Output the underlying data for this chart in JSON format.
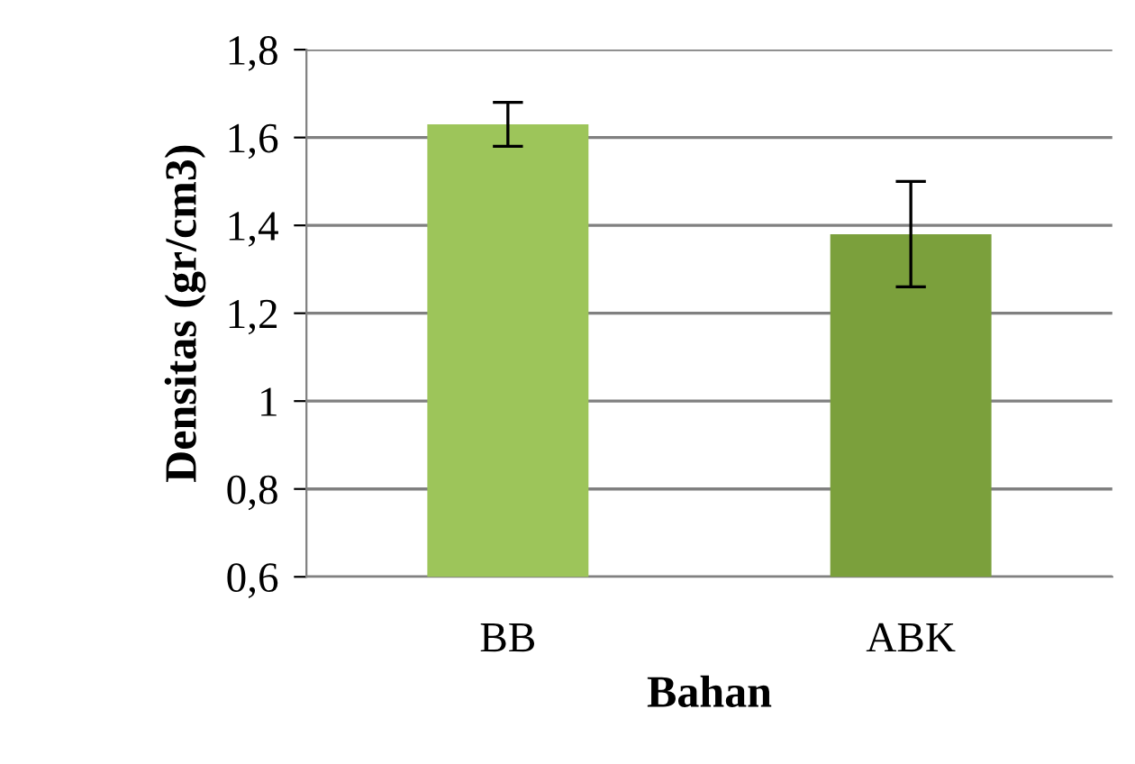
{
  "chart_data": {
    "type": "bar",
    "xlabel": "Bahan",
    "ylabel": "Densitas (gr/cm3)",
    "categories": [
      "BB",
      "ABK"
    ],
    "values": [
      1.63,
      1.38
    ],
    "colors": [
      "#9dc55a",
      "#7ba03c"
    ],
    "errors": [
      [
        1.58,
        1.68
      ],
      [
        1.26,
        1.5
      ]
    ],
    "ylim": [
      0.6,
      1.8
    ],
    "yticks": [
      {
        "value": 0.6,
        "label": "0,6"
      },
      {
        "value": 0.8,
        "label": "0,8"
      },
      1,
      {
        "value": 1.2,
        "label": "1,2"
      },
      {
        "value": 1.4,
        "label": "1,4"
      },
      {
        "value": 1.6,
        "label": "1,6"
      },
      {
        "value": 1.8,
        "label": "1,8"
      }
    ],
    "grid": "y"
  }
}
